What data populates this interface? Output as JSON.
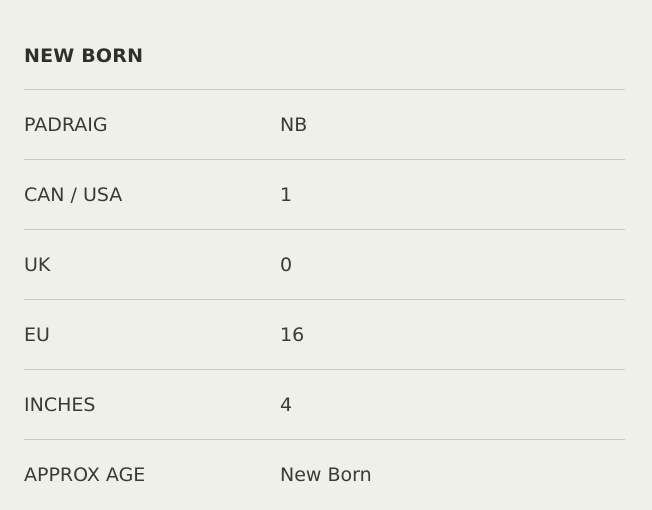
{
  "title": "NEW BORN",
  "rows": [
    {
      "label": "PADRAIG",
      "value": "NB"
    },
    {
      "label": "CAN / USA",
      "value": "1"
    },
    {
      "label": "UK",
      "value": "0"
    },
    {
      "label": "EU",
      "value": "16"
    },
    {
      "label": "INCHES",
      "value": "4"
    },
    {
      "label": "APPROX AGE",
      "value": "New Born"
    }
  ]
}
